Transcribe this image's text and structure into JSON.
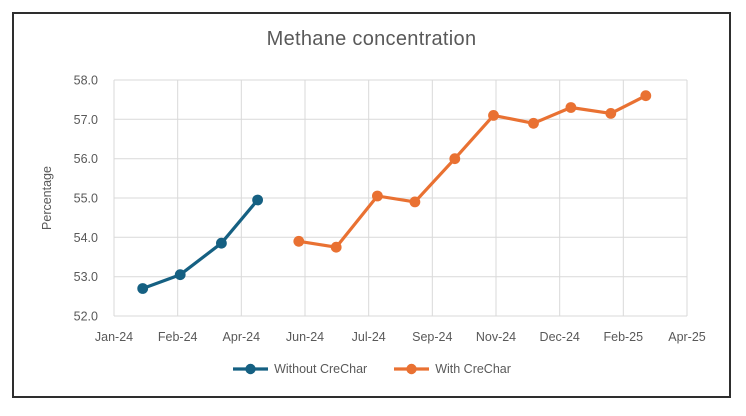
{
  "chart_data": {
    "type": "line",
    "title": "Methane concentration",
    "xlabel": "",
    "ylabel": "Percentage",
    "ylim": [
      52.0,
      58.0
    ],
    "ytick_step": 1.0,
    "ytick_labels": [
      "52.0",
      "53.0",
      "54.0",
      "55.0",
      "56.0",
      "57.0",
      "58.0"
    ],
    "xtick_labels": [
      "Jan-24",
      "Feb-24",
      "Apr-24",
      "Jun-24",
      "Jul-24",
      "Sep-24",
      "Nov-24",
      "Dec-24",
      "Feb-25",
      "Apr-25"
    ],
    "xtick_day_interval": 51,
    "axis_day_range": [
      0,
      459
    ],
    "grid": true,
    "legend_position": "bottom",
    "series": [
      {
        "name": "Without CreChar",
        "color": "#156082",
        "points": [
          {
            "month": "Jan-24",
            "day": 23,
            "value": 52.7
          },
          {
            "month": "Feb-24",
            "day": 53,
            "value": 53.05
          },
          {
            "month": "Mar-24",
            "day": 86,
            "value": 53.85
          },
          {
            "month": "Apr-24",
            "day": 115,
            "value": 54.95
          }
        ]
      },
      {
        "name": "With CreChar",
        "color": "#E97132",
        "points": [
          {
            "month": "May-24",
            "day": 148,
            "value": 53.9
          },
          {
            "month": "Jun-24",
            "day": 178,
            "value": 53.75
          },
          {
            "month": "Jul-24",
            "day": 211,
            "value": 55.05
          },
          {
            "month": "Aug-24",
            "day": 241,
            "value": 54.9
          },
          {
            "month": "Sep-24",
            "day": 273,
            "value": 56.0
          },
          {
            "month": "Oct-24",
            "day": 304,
            "value": 57.1
          },
          {
            "month": "Nov-24",
            "day": 336,
            "value": 56.9
          },
          {
            "month": "Dec-24",
            "day": 366,
            "value": 57.3
          },
          {
            "month": "Jan-25",
            "day": 398,
            "value": 57.15
          },
          {
            "month": "Feb-25",
            "day": 426,
            "value": 57.6
          }
        ]
      }
    ],
    "colors": {
      "grid": "#d9d9d9",
      "text": "#595959",
      "title": "#595959",
      "frame_border": "#2e2e2e",
      "background": "#ffffff"
    }
  }
}
